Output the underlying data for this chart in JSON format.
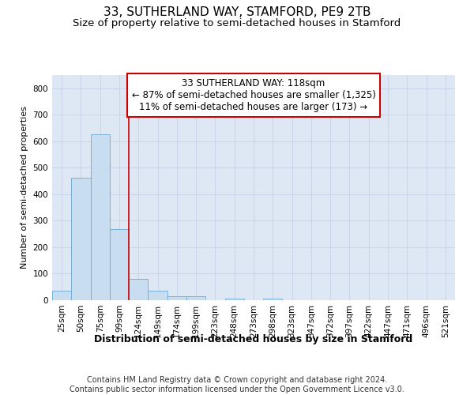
{
  "title": "33, SUTHERLAND WAY, STAMFORD, PE9 2TB",
  "subtitle": "Size of property relative to semi-detached houses in Stamford",
  "xlabel": "Distribution of semi-detached houses by size in Stamford",
  "ylabel": "Number of semi-detached properties",
  "footer_line1": "Contains HM Land Registry data © Crown copyright and database right 2024.",
  "footer_line2": "Contains public sector information licensed under the Open Government Licence v3.0.",
  "annotation_line1": "33 SUTHERLAND WAY: 118sqm",
  "annotation_line2": "← 87% of semi-detached houses are smaller (1,325)",
  "annotation_line3": "11% of semi-detached houses are larger (173) →",
  "bar_categories": [
    "25sqm",
    "50sqm",
    "75sqm",
    "99sqm",
    "124sqm",
    "149sqm",
    "174sqm",
    "199sqm",
    "223sqm",
    "248sqm",
    "273sqm",
    "298sqm",
    "323sqm",
    "347sqm",
    "372sqm",
    "397sqm",
    "422sqm",
    "447sqm",
    "471sqm",
    "496sqm",
    "521sqm"
  ],
  "bar_values": [
    37,
    462,
    625,
    268,
    80,
    35,
    15,
    15,
    0,
    5,
    0,
    5,
    0,
    0,
    0,
    0,
    0,
    0,
    0,
    0,
    0
  ],
  "bar_color": "#c9ddf0",
  "bar_edge_color": "#6aaad4",
  "vline_color": "#cc0000",
  "vline_pos": 3.5,
  "ylim": [
    0,
    850
  ],
  "yticks": [
    0,
    100,
    200,
    300,
    400,
    500,
    600,
    700,
    800
  ],
  "grid_color": "#c8d4e8",
  "background_color": "#dde8f4",
  "title_fontsize": 11,
  "subtitle_fontsize": 9.5,
  "xlabel_fontsize": 9,
  "ylabel_fontsize": 8,
  "tick_fontsize": 7.5,
  "annotation_fontsize": 8.5,
  "footer_fontsize": 7
}
